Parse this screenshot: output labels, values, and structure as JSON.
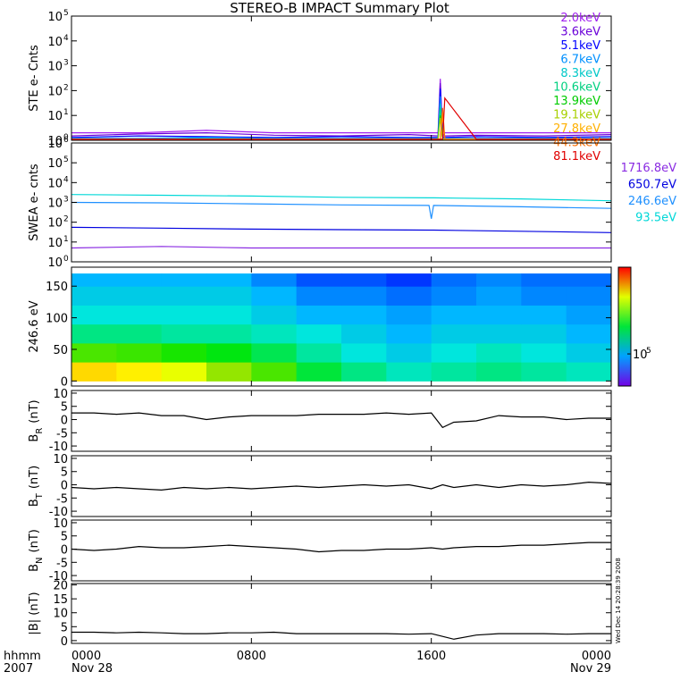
{
  "title": "STEREO-B IMPACT Summary Plot",
  "timestamp": "Wed Dec 14 20:28:39 2008",
  "x_axis": {
    "xlim": [
      0,
      24
    ],
    "xticks": [
      {
        "value": 0,
        "label": "0000"
      },
      {
        "value": 8,
        "label": "0800"
      },
      {
        "value": 16,
        "label": "1600"
      },
      {
        "value": 24,
        "label": "0000"
      }
    ],
    "start_date": "Nov 28",
    "end_date": "Nov 29",
    "format_label": "hhmm",
    "year": "2007"
  },
  "chart_data": [
    {
      "type": "line",
      "log": true,
      "ylabel": "STE e- Cnts",
      "ylim": [
        1,
        100000
      ],
      "yticks": [
        {
          "value": 1,
          "label": "10",
          "exponent": "0"
        },
        {
          "value": 10,
          "label": "10",
          "exponent": "1"
        },
        {
          "value": 100,
          "label": "10",
          "exponent": "2"
        },
        {
          "value": 1000,
          "label": "10",
          "exponent": "3"
        },
        {
          "value": 10000,
          "label": "10",
          "exponent": "4"
        },
        {
          "value": 100000,
          "label": "10",
          "exponent": "5"
        }
      ],
      "x": [
        0,
        3,
        6,
        9,
        12,
        15,
        16.3,
        16.4,
        16.5,
        16.6,
        18,
        21,
        24
      ],
      "series": [
        {
          "name": "2.0keV",
          "color": "#a020f0",
          "values": [
            2,
            2,
            2.5,
            2,
            2,
            2,
            2,
            300,
            1.5,
            2,
            2,
            2,
            2
          ]
        },
        {
          "name": "3.6keV",
          "color": "#6a00d8",
          "values": [
            1.5,
            1.8,
            2,
            1.6,
            1.5,
            1.7,
            1.5,
            200,
            1.5,
            1.5,
            1.6,
            1.5,
            1.7
          ]
        },
        {
          "name": "5.1keV",
          "color": "#0000ff",
          "values": [
            1.3,
            1.5,
            1.4,
            1.3,
            1.4,
            1.3,
            1.3,
            120,
            1.3,
            1.3,
            1.4,
            1.3,
            1.4
          ]
        },
        {
          "name": "6.7keV",
          "color": "#0090ff",
          "values": [
            1.2,
            1.2,
            1.3,
            1.2,
            1.2,
            1.2,
            1.2,
            60,
            1.2,
            1.2,
            1.2,
            1.2,
            1.2
          ]
        },
        {
          "name": "8.3keV",
          "color": "#00c8c8",
          "values": [
            1.1,
            1.1,
            1.2,
            1.1,
            1.1,
            1.1,
            1.1,
            30,
            1.1,
            1.1,
            1.1,
            1.1,
            1.1
          ]
        },
        {
          "name": "10.6keV",
          "color": "#00d080",
          "values": [
            1.1,
            1.1,
            1.1,
            1.1,
            1.1,
            1.1,
            1.1,
            20,
            1.1,
            1.1,
            1.1,
            1.1,
            1.1
          ]
        },
        {
          "name": "13.9keV",
          "color": "#00cc00",
          "values": [
            1.1,
            1.1,
            1.1,
            1.1,
            1.1,
            1.1,
            1.1,
            10,
            1.1,
            1.1,
            1.1,
            1.1,
            1.1
          ]
        },
        {
          "name": "19.1keV",
          "color": "#a8d000",
          "values": [
            1.1,
            1.1,
            1.1,
            1.1,
            1.1,
            1.1,
            1.1,
            8,
            1.1,
            1.1,
            1.1,
            1.1,
            1.1
          ]
        },
        {
          "name": "27.8keV",
          "color": "#ffb000",
          "values": [
            1.1,
            1.1,
            1.1,
            1.1,
            1.1,
            1.1,
            1.1,
            1.1,
            10,
            1.1,
            1.1,
            1.1,
            1.1
          ]
        },
        {
          "name": "44.3keV",
          "color": "#ff7000",
          "values": [
            1.1,
            1.1,
            1.1,
            1.1,
            1.1,
            1.1,
            1.1,
            1.1,
            20,
            1.1,
            1.1,
            1.1,
            1.1
          ]
        },
        {
          "name": "81.1keV",
          "color": "#e00000",
          "values": [
            1.1,
            1.1,
            1.1,
            1.1,
            1.1,
            1.1,
            1.1,
            1.1,
            1.1,
            50,
            1.1,
            1.1,
            1.1
          ]
        }
      ]
    },
    {
      "type": "line",
      "log": true,
      "ylabel": "SWEA e- cnts",
      "ylim": [
        1,
        1000000
      ],
      "yticks": [
        {
          "value": 1,
          "label": "10",
          "exponent": "0"
        },
        {
          "value": 10,
          "label": "10",
          "exponent": "1"
        },
        {
          "value": 100,
          "label": "10",
          "exponent": "2"
        },
        {
          "value": 1000,
          "label": "10",
          "exponent": "3"
        },
        {
          "value": 10000,
          "label": "10",
          "exponent": "4"
        },
        {
          "value": 100000,
          "label": "10",
          "exponent": "5"
        },
        {
          "value": 1000000,
          "label": "10",
          "exponent": "6"
        }
      ],
      "x": [
        0,
        4,
        8,
        12,
        15.9,
        16,
        16.1,
        20,
        24
      ],
      "series": [
        {
          "name": "1716.8eV",
          "color": "#8a2be2",
          "values": [
            5,
            6,
            5,
            5,
            5,
            5,
            5,
            5,
            5
          ]
        },
        {
          "name": "650.7eV",
          "color": "#0000e0",
          "values": [
            55,
            50,
            45,
            42,
            40,
            40,
            40,
            35,
            30
          ]
        },
        {
          "name": "246.6eV",
          "color": "#1e90ff",
          "values": [
            1000,
            950,
            850,
            750,
            700,
            150,
            700,
            600,
            500
          ]
        },
        {
          "name": "93.5eV",
          "color": "#00d8d8",
          "values": [
            2500,
            2300,
            2100,
            1800,
            1700,
            1700,
            1700,
            1500,
            1200
          ]
        }
      ]
    },
    {
      "type": "heatmap",
      "ylabel": "246.6 eV",
      "ylim": [
        -8,
        180
      ],
      "yticks": [
        0,
        50,
        100,
        150
      ],
      "xbins": [
        0,
        2,
        4,
        6,
        8,
        10,
        12,
        14,
        16,
        18,
        20,
        22,
        24
      ],
      "ybins": [
        0,
        30,
        60,
        90,
        120,
        150,
        170
      ],
      "zlim": [
        50000,
        650000
      ],
      "zlog": true,
      "zticks": [
        {
          "value": 100000,
          "label": "10",
          "exponent": "5"
        }
      ],
      "values": [
        [
          400000,
          380000,
          350000,
          300000,
          250000,
          180000,
          150000,
          130000,
          140000,
          150000,
          140000,
          130000
        ],
        [
          250000,
          240000,
          220000,
          200000,
          170000,
          140000,
          120000,
          110000,
          120000,
          130000,
          120000,
          110000
        ],
        [
          150000,
          150000,
          140000,
          140000,
          130000,
          120000,
          110000,
          100000,
          110000,
          110000,
          110000,
          100000
        ],
        [
          120000,
          120000,
          120000,
          120000,
          110000,
          100000,
          100000,
          95000,
          100000,
          100000,
          100000,
          95000
        ],
        [
          110000,
          110000,
          110000,
          110000,
          100000,
          90000,
          90000,
          85000,
          90000,
          95000,
          90000,
          90000
        ],
        [
          100000,
          100000,
          100000,
          100000,
          90000,
          80000,
          80000,
          75000,
          85000,
          90000,
          85000,
          85000
        ]
      ]
    },
    {
      "type": "line",
      "ylabel": "B",
      "ylabel_sub": "R",
      "ylabel_unit": "(nT)",
      "ylim": [
        -12,
        11
      ],
      "yticks": [
        -10,
        -5,
        0,
        5,
        10
      ],
      "x": [
        0,
        1,
        2,
        3,
        4,
        5,
        6,
        7,
        8,
        9,
        10,
        11,
        12,
        13,
        14,
        15,
        16,
        16.5,
        17,
        18,
        19,
        20,
        21,
        22,
        23,
        24
      ],
      "series": [
        {
          "color": "#000000",
          "values": [
            2.5,
            2.5,
            2,
            2.5,
            1.5,
            1.5,
            0,
            1,
            1.5,
            1.5,
            1.5,
            2,
            2,
            2,
            2.5,
            2,
            2.5,
            -3,
            -1,
            -0.5,
            1.5,
            1,
            1,
            0,
            0.5,
            0.5
          ]
        }
      ]
    },
    {
      "type": "line",
      "ylabel": "B",
      "ylabel_sub": "T",
      "ylabel_unit": "(nT)",
      "ylim": [
        -12,
        11
      ],
      "yticks": [
        -10,
        -5,
        0,
        5,
        10
      ],
      "x": [
        0,
        1,
        2,
        3,
        4,
        5,
        6,
        7,
        8,
        9,
        10,
        11,
        12,
        13,
        14,
        15,
        16,
        16.5,
        17,
        18,
        19,
        20,
        21,
        22,
        23,
        24
      ],
      "series": [
        {
          "color": "#000000",
          "values": [
            -1,
            -1.5,
            -1,
            -1.5,
            -2,
            -1,
            -1.5,
            -1,
            -1.5,
            -1,
            -0.5,
            -1,
            -0.5,
            0,
            -0.5,
            0,
            -1.5,
            0,
            -1,
            0,
            -1,
            0,
            -0.5,
            0,
            1,
            0.5
          ]
        }
      ]
    },
    {
      "type": "line",
      "ylabel": "B",
      "ylabel_sub": "N",
      "ylabel_unit": "(nT)",
      "ylim": [
        -12,
        11
      ],
      "yticks": [
        -10,
        -5,
        0,
        5,
        10
      ],
      "x": [
        0,
        1,
        2,
        3,
        4,
        5,
        6,
        7,
        8,
        9,
        10,
        11,
        12,
        13,
        14,
        15,
        16,
        16.5,
        17,
        18,
        19,
        20,
        21,
        22,
        23,
        24
      ],
      "series": [
        {
          "color": "#000000",
          "values": [
            0,
            -0.5,
            0,
            1,
            0.5,
            0.5,
            1,
            1.5,
            1,
            0.5,
            0,
            -1,
            -0.5,
            -0.5,
            0,
            0,
            0.5,
            0,
            0.5,
            1,
            1,
            1.5,
            1.5,
            2,
            2.5,
            2.5
          ]
        }
      ]
    },
    {
      "type": "line",
      "ylabel": "|B| (nT)",
      "ylim": [
        -1,
        20.5
      ],
      "yticks": [
        0,
        5,
        10,
        15,
        20
      ],
      "x": [
        0,
        1,
        2,
        3,
        4,
        5,
        6,
        7,
        8,
        9,
        10,
        11,
        12,
        13,
        14,
        15,
        16,
        16.5,
        17,
        18,
        19,
        20,
        21,
        22,
        23,
        24
      ],
      "series": [
        {
          "color": "#000000",
          "values": [
            3,
            3,
            2.8,
            3,
            2.8,
            2.5,
            2.5,
            2.8,
            2.8,
            3,
            2.5,
            2.5,
            2.5,
            2.5,
            2.5,
            2.3,
            2.5,
            1.5,
            0.5,
            2,
            2.5,
            2.5,
            2.5,
            2.3,
            2.5,
            2.5
          ]
        }
      ]
    }
  ]
}
